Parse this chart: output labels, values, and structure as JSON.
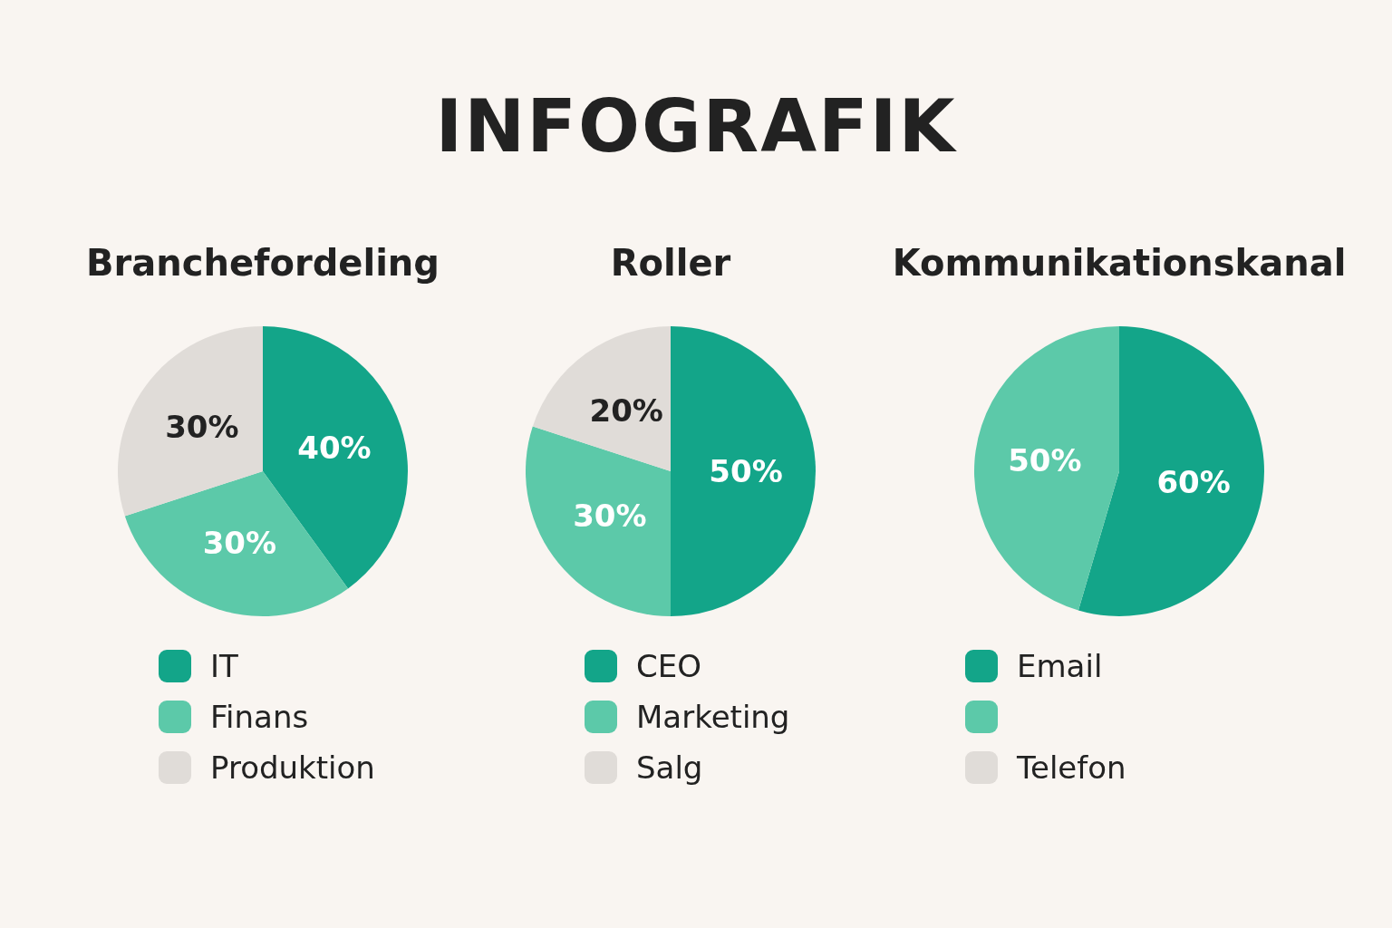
{
  "chart_data": [
    {
      "type": "other",
      "title": "INFOGRAFIK"
    },
    {
      "type": "pie",
      "title": "Branchefordeling",
      "categories": [
        "IT",
        "Finans",
        "Produktion"
      ],
      "values": [
        40,
        30,
        30
      ],
      "value_labels": [
        "40%",
        "30%",
        "30%"
      ],
      "colors": [
        "#13a589",
        "#5cc9a9",
        "#e0dcd8"
      ],
      "legend": "bottom"
    },
    {
      "type": "pie",
      "title": "Roller",
      "categories": [
        "CEO",
        "Marketing",
        "Salg"
      ],
      "values": [
        50,
        30,
        20
      ],
      "value_labels": [
        "50%",
        "30%",
        "20%"
      ],
      "colors": [
        "#13a589",
        "#5cc9a9",
        "#e0dcd8"
      ],
      "legend": "bottom"
    },
    {
      "type": "pie",
      "title": "Kommunikationskanal",
      "categories": [
        "Email",
        null,
        "Telefon"
      ],
      "values": [
        60,
        50,
        null
      ],
      "value_labels": [
        "60%",
        "50%",
        null
      ],
      "colors": [
        "#13a589",
        "#5cc9a9",
        "#e0dcd8"
      ],
      "legend": "bottom"
    }
  ]
}
